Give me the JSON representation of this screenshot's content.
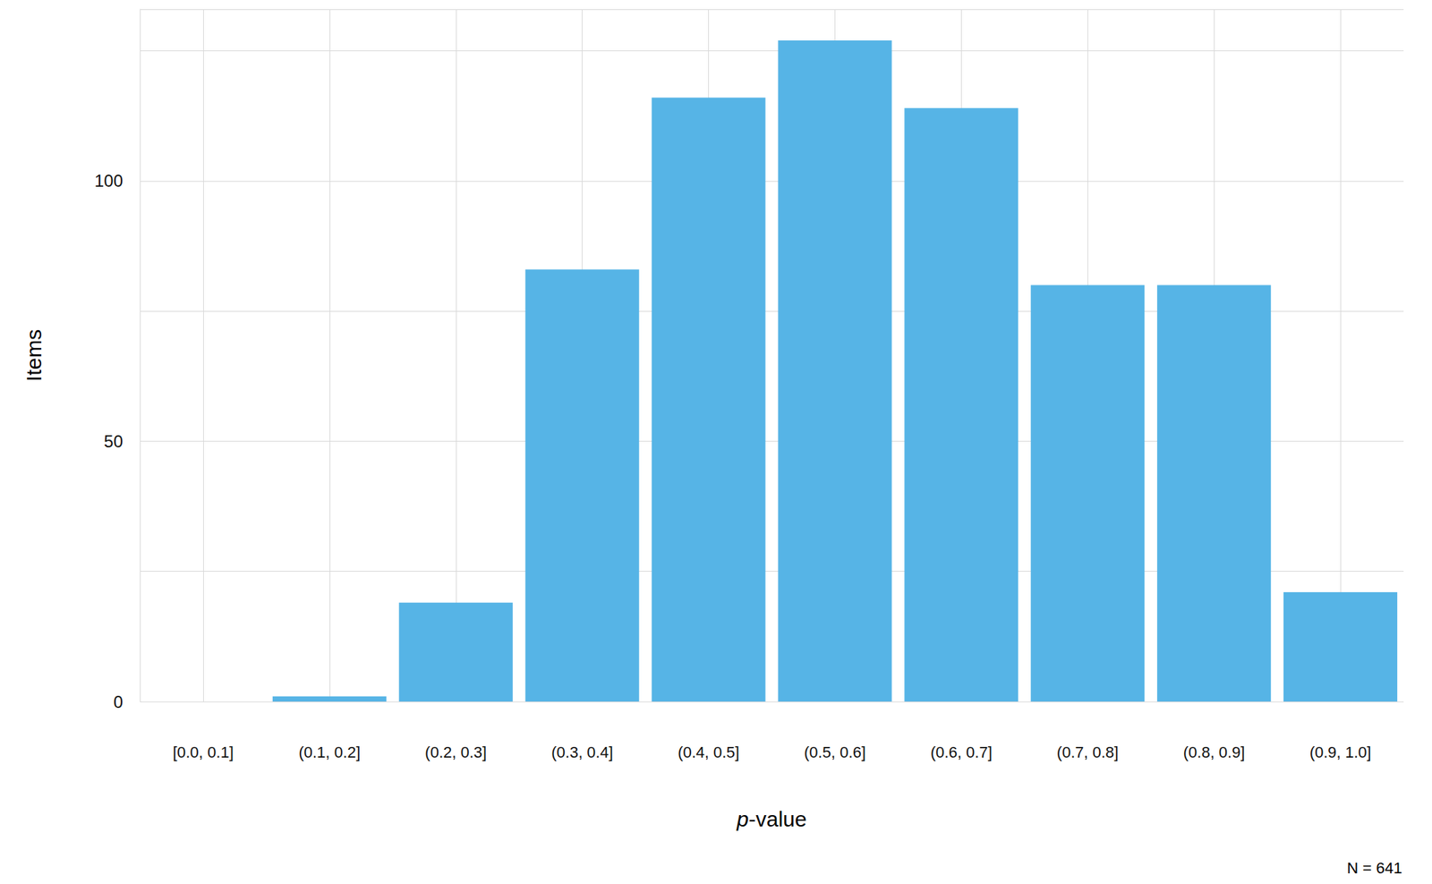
{
  "chart_data": {
    "type": "bar",
    "categories": [
      "[0.0, 0.1]",
      "(0.1, 0.2]",
      "(0.2, 0.3]",
      "(0.3, 0.4]",
      "(0.4, 0.5]",
      "(0.5, 0.6]",
      "(0.6, 0.7]",
      "(0.7, 0.8]",
      "(0.8, 0.9]",
      "(0.9, 1.0]"
    ],
    "values": [
      0,
      1,
      19,
      83,
      116,
      127,
      114,
      80,
      80,
      21
    ],
    "color": "#56b4e6",
    "x_label": "p-value",
    "y_label": "Items",
    "annotation": "N = 641",
    "ylim": [
      0,
      133
    ],
    "yticks": [
      0,
      50,
      100
    ],
    "grid": true
  }
}
